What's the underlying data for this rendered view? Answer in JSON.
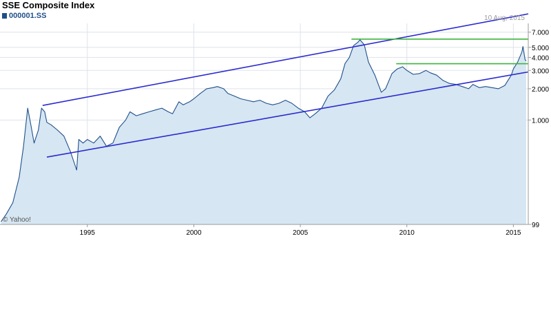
{
  "chart_data": {
    "type": "area",
    "title": "SSE Composite Index",
    "series": [
      {
        "name": "000001.SS",
        "x": [
          1990.95,
          1991.2,
          1991.5,
          1991.8,
          1992.0,
          1992.2,
          1992.35,
          1992.5,
          1992.7,
          1992.85,
          1993.0,
          1993.1,
          1993.3,
          1993.6,
          1993.9,
          1994.2,
          1994.5,
          1994.6,
          1994.8,
          1995.0,
          1995.3,
          1995.6,
          1995.9,
          1996.2,
          1996.5,
          1996.8,
          1997.0,
          1997.3,
          1997.6,
          1997.9,
          1998.2,
          1998.5,
          1998.8,
          1999.0,
          1999.3,
          1999.5,
          1999.8,
          2000.0,
          2000.3,
          2000.6,
          2000.9,
          2001.1,
          2001.4,
          2001.6,
          2001.9,
          2002.2,
          2002.5,
          2002.8,
          2003.1,
          2003.4,
          2003.7,
          2004.0,
          2004.3,
          2004.6,
          2004.9,
          2005.2,
          2005.45,
          2005.7,
          2006.0,
          2006.3,
          2006.6,
          2006.9,
          2007.1,
          2007.3,
          2007.5,
          2007.7,
          2007.8,
          2008.0,
          2008.2,
          2008.5,
          2008.8,
          2009.0,
          2009.3,
          2009.55,
          2009.8,
          2010.0,
          2010.3,
          2010.6,
          2010.9,
          2011.1,
          2011.4,
          2011.7,
          2012.0,
          2012.3,
          2012.6,
          2012.9,
          2013.1,
          2013.4,
          2013.7,
          2014.0,
          2014.3,
          2014.6,
          2014.9,
          2015.0,
          2015.2,
          2015.4,
          2015.45,
          2015.55,
          2015.6
        ],
        "values": [
          105,
          125,
          160,
          280,
          550,
          1300,
          900,
          600,
          800,
          1300,
          1200,
          950,
          900,
          800,
          700,
          500,
          330,
          650,
          600,
          650,
          600,
          700,
          560,
          600,
          850,
          1000,
          1200,
          1100,
          1150,
          1200,
          1250,
          1300,
          1200,
          1150,
          1500,
          1400,
          1500,
          1600,
          1800,
          2000,
          2050,
          2100,
          2000,
          1800,
          1700,
          1600,
          1550,
          1500,
          1550,
          1450,
          1400,
          1450,
          1550,
          1450,
          1300,
          1200,
          1050,
          1150,
          1300,
          1700,
          1950,
          2500,
          3500,
          4000,
          5200,
          5600,
          5900,
          5300,
          3600,
          2700,
          1850,
          2000,
          2800,
          3100,
          3250,
          3000,
          2750,
          2800,
          3000,
          2850,
          2700,
          2400,
          2250,
          2200,
          2100,
          2000,
          2200,
          2050,
          2100,
          2050,
          2000,
          2150,
          2700,
          3100,
          3600,
          4500,
          5100,
          3800,
          3700
        ]
      }
    ],
    "y_scale": "log",
    "ylim": [
      99,
      8500
    ],
    "xlim": [
      1990.9,
      2015.7
    ],
    "y_ticks": [
      {
        "value": 7000,
        "label": "7.000"
      },
      {
        "value": 5000,
        "label": "5.000"
      },
      {
        "value": 4000,
        "label": "4.000"
      },
      {
        "value": 3000,
        "label": "3.000"
      },
      {
        "value": 2000,
        "label": "2.000"
      },
      {
        "value": 1000,
        "label": "1.000"
      },
      {
        "value": 99,
        "label": "99"
      }
    ],
    "x_ticks": [
      {
        "value": 1995,
        "label": "1995"
      },
      {
        "value": 2000,
        "label": "2000"
      },
      {
        "value": 2005,
        "label": "2005"
      },
      {
        "value": 2010,
        "label": "2010"
      },
      {
        "value": 2015,
        "label": "2015"
      }
    ],
    "annotations": {
      "blue_lines": [
        {
          "x": [
            1992.9,
            2015.7
          ],
          "y": [
            1380,
            10500
          ]
        },
        {
          "x": [
            1993.1,
            2015.7
          ],
          "y": [
            440,
            2900
          ]
        }
      ],
      "green_lines": [
        {
          "x": [
            2007.4,
            2015.7
          ],
          "y": [
            6000,
            6000
          ]
        },
        {
          "x": [
            2009.5,
            2015.7
          ],
          "y": [
            3480,
            3480
          ]
        }
      ]
    },
    "grid": true,
    "date_label": "10 Aug, 2015",
    "credit": "© Yahoo!",
    "colors": {
      "line": "#1e4f8a",
      "fill": "#d6e6f2",
      "trend": "#2a2ad0",
      "resistance": "#3cb43c",
      "grid": "#dde3ea"
    }
  }
}
